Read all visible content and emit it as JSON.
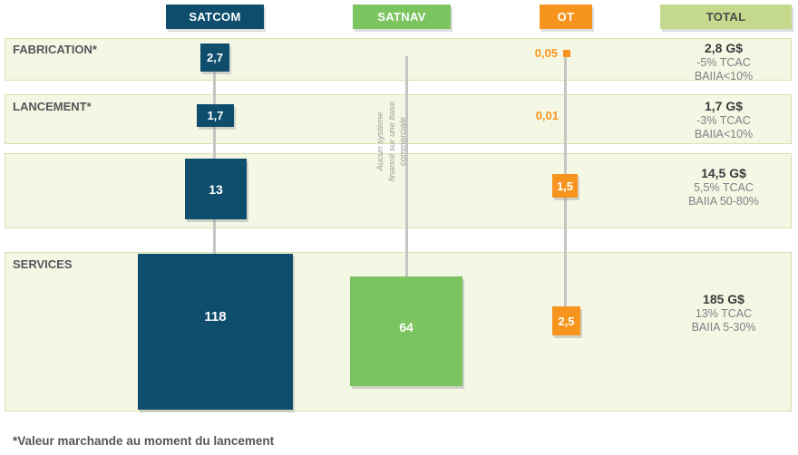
{
  "columns": {
    "satcom": {
      "label": "SATCOM",
      "color": "#0F4D6C"
    },
    "satnav": {
      "label": "SATNAV",
      "color": "#7CC45F"
    },
    "ot": {
      "label": "OT",
      "color": "#F7941E"
    },
    "total": {
      "label": "TOTAL",
      "color": "#C5D98D"
    }
  },
  "rows": {
    "fabrication": {
      "label": "FABRICATION*",
      "satcom": "2,7",
      "ot": "0,05",
      "total_value": "2,8 G$",
      "total_tcac": "-5% TCAC",
      "total_baiia": "BAIIA<10%"
    },
    "lancement": {
      "label": "LANCEMENT*",
      "satcom": "1,7",
      "ot": "0,01",
      "total_value": "1,7 G$",
      "total_tcac": "-3% TCAC",
      "total_baiia": "BAIIA<10%"
    },
    "sol": {
      "label": "",
      "satcom": "13",
      "ot": "1,5",
      "total_value": "14,5 G$",
      "total_tcac": "5,5% TCAC",
      "total_baiia": "BAIIA 50-80%"
    },
    "services": {
      "label": "SERVICES",
      "satcom": "118",
      "satnav": "64",
      "ot": "2,5",
      "total_value": "185 G$",
      "total_tcac": "13% TCAC",
      "total_baiia": "BAIIA 5-30%"
    }
  },
  "satnav_note": {
    "line1": "Aucun système",
    "line2": "financé sur une base",
    "line3": "commerciale"
  },
  "footnote": "*Valeur marchande au moment du lancement",
  "chart_data": {
    "type": "table",
    "title": "",
    "unit": "G$",
    "encoding": "square area proportional to value",
    "columns": [
      "SATCOM",
      "SATNAV",
      "OT",
      "TOTAL"
    ],
    "rows": [
      {
        "label": "FABRICATION*",
        "SATCOM": 2.7,
        "SATNAV": null,
        "OT": 0.05,
        "TOTAL": "2,8 G$",
        "TCAC": "-5%",
        "BAIIA": "<10%"
      },
      {
        "label": "LANCEMENT*",
        "SATCOM": 1.7,
        "SATNAV": null,
        "OT": 0.01,
        "TOTAL": "1,7 G$",
        "TCAC": "-3%",
        "BAIIA": "<10%"
      },
      {
        "label": "",
        "SATCOM": 13,
        "SATNAV": null,
        "OT": 1.5,
        "TOTAL": "14,5 G$",
        "TCAC": "5,5%",
        "BAIIA": "50-80%"
      },
      {
        "label": "SERVICES",
        "SATCOM": 118,
        "SATNAV": 64,
        "OT": 2.5,
        "TOTAL": "185 G$",
        "TCAC": "13%",
        "BAIIA": "5-30%"
      }
    ],
    "annotation": "Aucun système financé sur une base commerciale",
    "footnote": "*Valeur marchande au moment du lancement",
    "colors": {
      "SATCOM": "#0F4D6C",
      "SATNAV": "#7CC45F",
      "OT": "#F7941E",
      "TOTAL": "#C5D98D"
    }
  }
}
